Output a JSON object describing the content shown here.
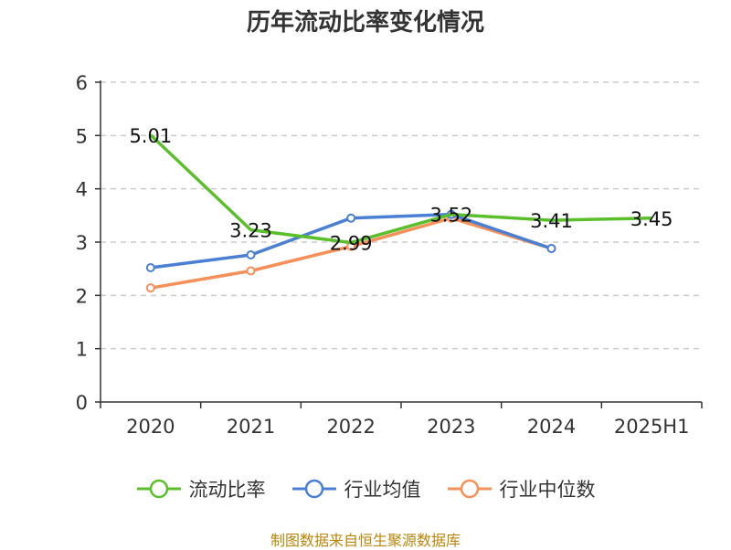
{
  "chart_data": {
    "type": "line",
    "title": "历年流动比率变化情况",
    "categories": [
      "2020",
      "2021",
      "2022",
      "2023",
      "2024",
      "2025H1"
    ],
    "ylim": [
      0,
      6
    ],
    "yticks": [
      0,
      1,
      2,
      3,
      4,
      5,
      6
    ],
    "grid": true,
    "legend_position": "bottom",
    "series": [
      {
        "name": "流动比率",
        "color": "#5bbf2b",
        "values": [
          5.01,
          3.23,
          2.99,
          3.52,
          3.41,
          3.45
        ],
        "labels": [
          "5.01",
          "3.23",
          "2.99",
          "3.52",
          "3.41",
          "3.45"
        ]
      },
      {
        "name": "行业均值",
        "color": "#4a7fd4",
        "values": [
          2.52,
          2.76,
          3.45,
          3.52,
          2.88,
          null
        ]
      },
      {
        "name": "行业中位数",
        "color": "#f5905a",
        "values": [
          2.14,
          2.46,
          2.92,
          3.45,
          2.88,
          null
        ]
      }
    ],
    "source": "制图数据来自恒生聚源数据库"
  }
}
